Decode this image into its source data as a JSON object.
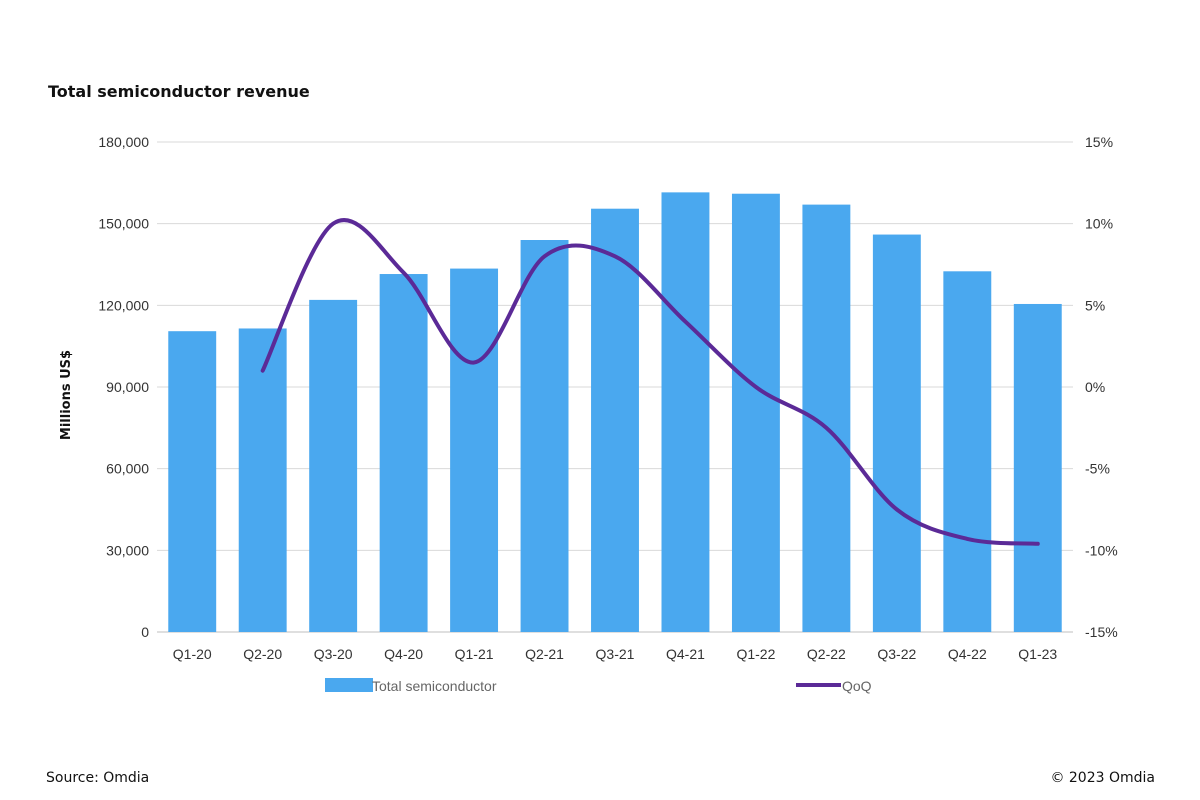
{
  "chart_data": {
    "type": "bar",
    "title": "Total semiconductor revenue",
    "ylabel": "Millions US$",
    "categories": [
      "Q1-20",
      "Q2-20",
      "Q3-20",
      "Q4-20",
      "Q1-21",
      "Q2-21",
      "Q3-21",
      "Q4-21",
      "Q1-22",
      "Q2-22",
      "Q3-22",
      "Q4-22",
      "Q1-23"
    ],
    "series": [
      {
        "name": "Total semiconductor",
        "type": "bar",
        "axis": "left",
        "color": "#4aa8ef",
        "values": [
          110500,
          111500,
          122000,
          131500,
          133500,
          144000,
          155500,
          161500,
          161000,
          157000,
          146000,
          132500,
          120500
        ]
      },
      {
        "name": "QoQ",
        "type": "line",
        "axis": "right",
        "color": "#5b2a97",
        "values": [
          null,
          1.0,
          10.0,
          7.0,
          1.5,
          8.0,
          8.0,
          4.0,
          0.0,
          -2.5,
          -7.5,
          -9.3,
          -9.6
        ]
      }
    ],
    "ylim": [
      0,
      180000
    ],
    "yticks": [
      "0",
      "30,000",
      "60,000",
      "90,000",
      "120,000",
      "150,000",
      "180,000"
    ],
    "y2lim": [
      -15,
      15
    ],
    "y2ticks": [
      "-15%",
      "-10%",
      "-5%",
      "0%",
      "5%",
      "10%",
      "15%"
    ],
    "grid": true,
    "legend_position": "bottom"
  },
  "footer": {
    "source": "Source: Omdia",
    "copyright": "© 2023 Omdia"
  }
}
